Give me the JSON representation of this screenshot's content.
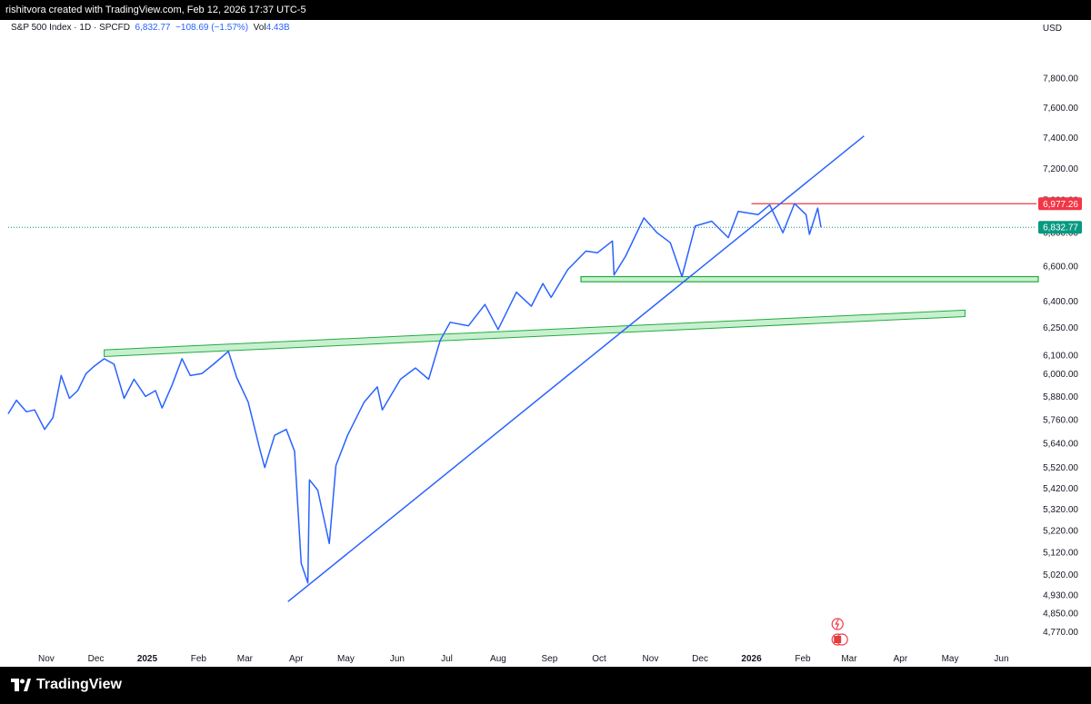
{
  "topbar": {
    "credit": "rishitvora created with TradingView.com, Feb 12, 2026 17:37 UTC-5"
  },
  "legend": {
    "symbol": "S&P 500 Index · 1D · SPCFD",
    "last": "6,832.77",
    "change": "−108.69 (−1.57%)",
    "vol_label": "Vol",
    "vol_value": "4.43B"
  },
  "currency": "USD",
  "price_tags": {
    "resistance": "6,977.26",
    "last": "6,832.77"
  },
  "brand": {
    "name": "TradingView"
  },
  "colors": {
    "line": "#2962ff",
    "resistance": "#f23645",
    "support": "#22ab3f",
    "last_tag": "#089981"
  },
  "chart_data": {
    "type": "line",
    "title": "S&P 500 Index · 1D · SPCFD",
    "xlabel": "",
    "ylabel": "",
    "scale": "log",
    "ylim": [
      4700,
      8050
    ],
    "y_ticks": [
      7800,
      7600,
      7400,
      7200,
      7000,
      6800,
      6600,
      6400,
      6250,
      6100,
      6000,
      5880,
      5760,
      5640,
      5520,
      5420,
      5320,
      5220,
      5120,
      5020,
      4930,
      4850,
      4770
    ],
    "x_ticks": [
      {
        "label": "Nov",
        "date": "2024-11-01"
      },
      {
        "label": "Dec",
        "date": "2024-12-01"
      },
      {
        "label": "2025",
        "date": "2025-01-01",
        "bold": true
      },
      {
        "label": "Feb",
        "date": "2025-02-01"
      },
      {
        "label": "Mar",
        "date": "2025-03-01"
      },
      {
        "label": "Apr",
        "date": "2025-04-01"
      },
      {
        "label": "May",
        "date": "2025-05-01"
      },
      {
        "label": "Jun",
        "date": "2025-06-01"
      },
      {
        "label": "Jul",
        "date": "2025-07-01"
      },
      {
        "label": "Aug",
        "date": "2025-08-01"
      },
      {
        "label": "Sep",
        "date": "2025-09-01"
      },
      {
        "label": "Oct",
        "date": "2025-10-01"
      },
      {
        "label": "Nov",
        "date": "2025-11-01"
      },
      {
        "label": "Dec",
        "date": "2025-12-01"
      },
      {
        "label": "2026",
        "date": "2026-01-01",
        "bold": true
      },
      {
        "label": "Feb",
        "date": "2026-02-01"
      },
      {
        "label": "Mar",
        "date": "2026-03-01"
      },
      {
        "label": "Apr",
        "date": "2026-04-01"
      },
      {
        "label": "May",
        "date": "2026-05-01"
      },
      {
        "label": "Jun",
        "date": "2026-06-01"
      }
    ],
    "series": [
      {
        "name": "S&P 500 Index",
        "points": [
          [
            "2024-10-09",
            5790
          ],
          [
            "2024-10-14",
            5860
          ],
          [
            "2024-10-20",
            5800
          ],
          [
            "2024-10-25",
            5810
          ],
          [
            "2024-10-31",
            5710
          ],
          [
            "2024-11-05",
            5770
          ],
          [
            "2024-11-10",
            5990
          ],
          [
            "2024-11-15",
            5870
          ],
          [
            "2024-11-20",
            5910
          ],
          [
            "2024-11-25",
            6000
          ],
          [
            "2024-11-30",
            6040
          ],
          [
            "2024-12-06",
            6080
          ],
          [
            "2024-12-12",
            6050
          ],
          [
            "2024-12-18",
            5870
          ],
          [
            "2024-12-24",
            5970
          ],
          [
            "2024-12-31",
            5880
          ],
          [
            "2025-01-06",
            5910
          ],
          [
            "2025-01-10",
            5820
          ],
          [
            "2025-01-16",
            5940
          ],
          [
            "2025-01-22",
            6080
          ],
          [
            "2025-01-27",
            5990
          ],
          [
            "2025-02-03",
            6000
          ],
          [
            "2025-02-10",
            6050
          ],
          [
            "2025-02-19",
            6120
          ],
          [
            "2025-02-24",
            5980
          ],
          [
            "2025-03-03",
            5850
          ],
          [
            "2025-03-10",
            5610
          ],
          [
            "2025-03-13",
            5520
          ],
          [
            "2025-03-19",
            5680
          ],
          [
            "2025-03-26",
            5710
          ],
          [
            "2025-03-31",
            5600
          ],
          [
            "2025-04-04",
            5070
          ],
          [
            "2025-04-08",
            4982
          ],
          [
            "2025-04-09",
            5460
          ],
          [
            "2025-04-14",
            5410
          ],
          [
            "2025-04-21",
            5160
          ],
          [
            "2025-04-25",
            5530
          ],
          [
            "2025-05-02",
            5680
          ],
          [
            "2025-05-12",
            5850
          ],
          [
            "2025-05-20",
            5930
          ],
          [
            "2025-05-23",
            5810
          ],
          [
            "2025-06-03",
            5970
          ],
          [
            "2025-06-12",
            6030
          ],
          [
            "2025-06-20",
            5970
          ],
          [
            "2025-06-27",
            6180
          ],
          [
            "2025-07-03",
            6280
          ],
          [
            "2025-07-14",
            6260
          ],
          [
            "2025-07-24",
            6380
          ],
          [
            "2025-08-01",
            6240
          ],
          [
            "2025-08-12",
            6450
          ],
          [
            "2025-08-21",
            6370
          ],
          [
            "2025-08-28",
            6500
          ],
          [
            "2025-09-02",
            6420
          ],
          [
            "2025-09-12",
            6580
          ],
          [
            "2025-09-23",
            6690
          ],
          [
            "2025-09-30",
            6680
          ],
          [
            "2025-10-09",
            6750
          ],
          [
            "2025-10-10",
            6550
          ],
          [
            "2025-10-17",
            6660
          ],
          [
            "2025-10-28",
            6890
          ],
          [
            "2025-11-05",
            6800
          ],
          [
            "2025-11-13",
            6740
          ],
          [
            "2025-11-20",
            6540
          ],
          [
            "2025-11-28",
            6840
          ],
          [
            "2025-12-08",
            6870
          ],
          [
            "2025-12-18",
            6770
          ],
          [
            "2025-12-24",
            6930
          ],
          [
            "2026-01-05",
            6910
          ],
          [
            "2026-01-12",
            6970
          ],
          [
            "2026-01-20",
            6800
          ],
          [
            "2026-01-27",
            6978
          ],
          [
            "2026-02-03",
            6910
          ],
          [
            "2026-02-05",
            6790
          ],
          [
            "2026-02-10",
            6950
          ],
          [
            "2026-02-12",
            6832.77
          ]
        ]
      }
    ],
    "annotations": {
      "resistance": {
        "price": 6977.26,
        "from": "2026-01-01"
      },
      "support_zone": {
        "price_high": 6540,
        "price_low": 6510,
        "from": "2025-09-20"
      },
      "rising_channel": {
        "start": [
          "2024-12-06",
          6110
        ],
        "end": [
          "2026-05-10",
          6330
        ],
        "width_price": 18
      },
      "trendline": {
        "start": [
          "2025-03-27",
          4900
        ],
        "end": [
          "2026-03-10",
          7410
        ]
      },
      "last_price": 6832.77
    }
  }
}
